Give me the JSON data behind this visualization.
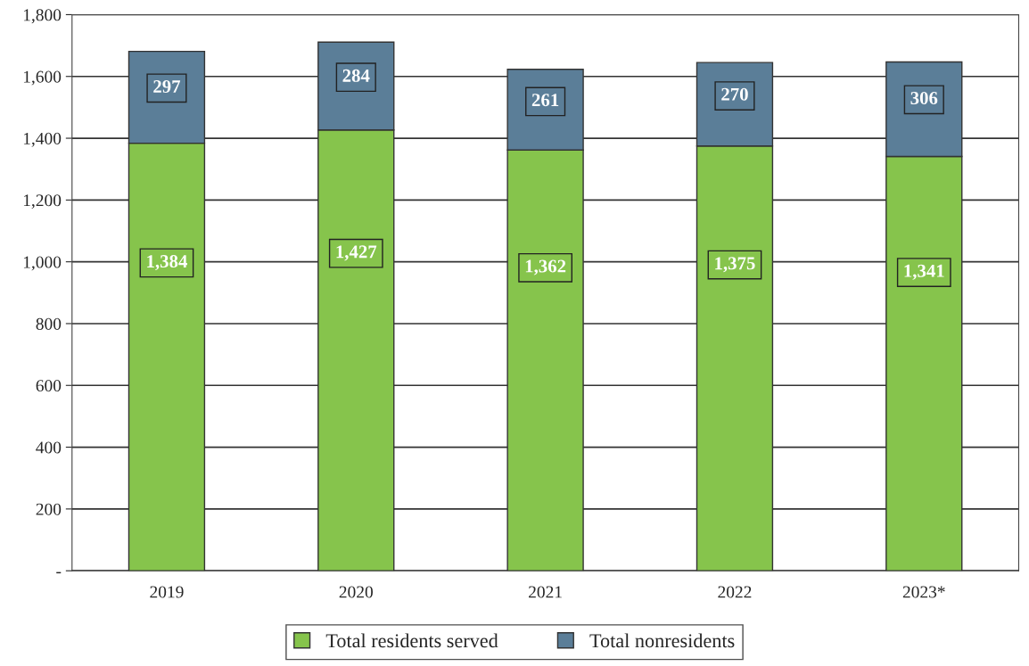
{
  "chart_data": {
    "type": "bar",
    "stacked": true,
    "categories": [
      "2019",
      "2020",
      "2021",
      "2022",
      "2023*"
    ],
    "series": [
      {
        "name": "Total residents served",
        "color": "#86c44c",
        "values": [
          1384,
          1427,
          1362,
          1375,
          1341
        ],
        "value_labels": [
          "1,384",
          "1,427",
          "1,362",
          "1,375",
          "1,341"
        ]
      },
      {
        "name": "Total nonresidents",
        "color": "#5b7e98",
        "values": [
          297,
          284,
          261,
          270,
          306
        ],
        "value_labels": [
          "297",
          "284",
          "261",
          "270",
          "306"
        ]
      }
    ],
    "ylim": [
      0,
      1800
    ],
    "yticks": [
      {
        "value": 0,
        "label": "-"
      },
      {
        "value": 200,
        "label": "200"
      },
      {
        "value": 400,
        "label": "400"
      },
      {
        "value": 600,
        "label": "600"
      },
      {
        "value": 800,
        "label": "800"
      },
      {
        "value": 1000,
        "label": "1,000"
      },
      {
        "value": 1200,
        "label": "1,200"
      },
      {
        "value": 1400,
        "label": "1,400"
      },
      {
        "value": 1600,
        "label": "1,600"
      },
      {
        "value": 1800,
        "label": "1,800"
      }
    ],
    "grid": "y",
    "legend": "bottom"
  }
}
